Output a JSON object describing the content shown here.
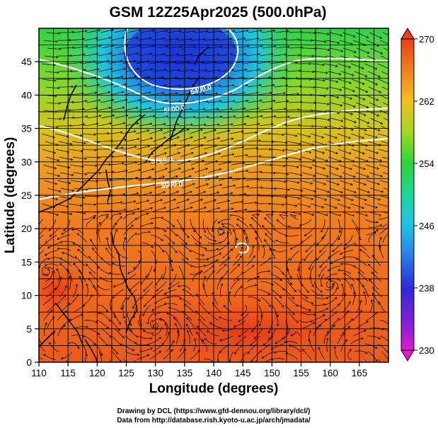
{
  "title": "GSM 12Z25Apr2025 (500.0hPa)",
  "x_axis": {
    "label": "Longitude (degrees)",
    "range": [
      110,
      170
    ],
    "ticks": [
      "110",
      "115",
      "120",
      "125",
      "130",
      "135",
      "140",
      "145",
      "150",
      "155",
      "160",
      "165"
    ]
  },
  "y_axis": {
    "label": "Latitude  (degrees)",
    "range": [
      0,
      50
    ],
    "ticks": [
      "0",
      "5",
      "10",
      "15",
      "20",
      "25",
      "30",
      "35",
      "40",
      "45"
    ]
  },
  "colorbar": {
    "range": [
      230,
      270
    ],
    "ticks": [
      "230",
      "238",
      "246",
      "254",
      "262",
      "270"
    ],
    "colors": [
      "#e21acd",
      "#2a2bd8",
      "#1fc2e8",
      "#2fd23a",
      "#f0a020",
      "#e8401c"
    ]
  },
  "contours": {
    "labels": [
      "5400.0",
      "5600.0",
      "5750.0",
      "5900.0"
    ],
    "color": "#ffffff"
  },
  "credits": [
    "Drawing by DCL (https://www.gfd-dennou.org/library/dcl/)",
    "Data from http://database.rish.kyoto-u.ac.jp/arch/jmadata/"
  ],
  "colors": {
    "vector_lines": "#000000",
    "coastline": "#000000",
    "grid": "#000000"
  }
}
